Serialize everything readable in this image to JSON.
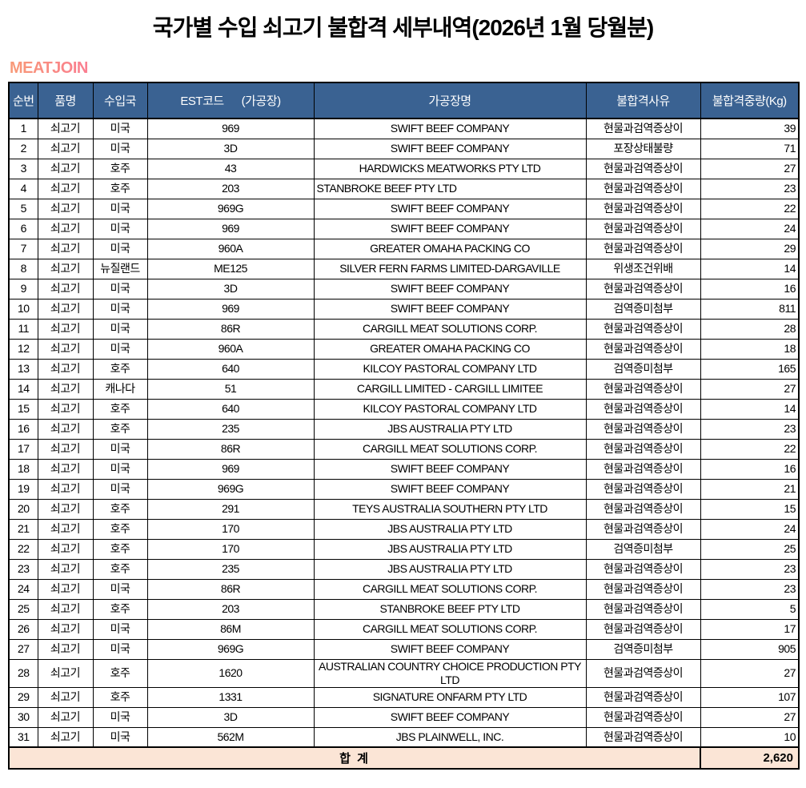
{
  "title": "국가별 수입 쇠고기 불합격 세부내역(2026년 1월 당월분)",
  "logo": "MEATJOIN",
  "colors": {
    "header_bg": "#3A6292",
    "header_text": "#FFFFFF",
    "total_row_bg": "#FBE5D6",
    "logo_gradient_start": "#F89A77",
    "logo_gradient_end": "#FA7D90",
    "border": "#000000"
  },
  "table": {
    "columns": [
      {
        "key": "no",
        "label": "순번"
      },
      {
        "key": "product",
        "label": "품명"
      },
      {
        "key": "country",
        "label": "수입국"
      },
      {
        "key": "est",
        "label": "EST코드      (가공장)"
      },
      {
        "key": "plant",
        "label": "가공장명"
      },
      {
        "key": "reason",
        "label": "불합격사유"
      },
      {
        "key": "weight",
        "label": "불합격중량(Kg)"
      }
    ],
    "rows": [
      {
        "no": "1",
        "product": "쇠고기",
        "country": "미국",
        "est": "969",
        "plant": "SWIFT BEEF COMPANY",
        "reason": "현물과검역증상이",
        "weight": "39"
      },
      {
        "no": "2",
        "product": "쇠고기",
        "country": "미국",
        "est": "3D",
        "plant": "SWIFT BEEF COMPANY",
        "reason": "포장상태불량",
        "weight": "71"
      },
      {
        "no": "3",
        "product": "쇠고기",
        "country": "호주",
        "est": "43",
        "plant": "HARDWICKS MEATWORKS PTY LTD",
        "reason": "현물과검역증상이",
        "weight": "27"
      },
      {
        "no": "4",
        "product": "쇠고기",
        "country": "호주",
        "est": "203",
        "plant": "STANBROKE BEEF PTY LTD",
        "reason": "현물과검역증상이",
        "weight": "23",
        "plant_align": "left"
      },
      {
        "no": "5",
        "product": "쇠고기",
        "country": "미국",
        "est": "969G",
        "plant": "SWIFT BEEF COMPANY",
        "reason": "현물과검역증상이",
        "weight": "22"
      },
      {
        "no": "6",
        "product": "쇠고기",
        "country": "미국",
        "est": "969",
        "plant": "SWIFT BEEF COMPANY",
        "reason": "현물과검역증상이",
        "weight": "24"
      },
      {
        "no": "7",
        "product": "쇠고기",
        "country": "미국",
        "est": "960A",
        "plant": "GREATER OMAHA PACKING CO",
        "reason": "현물과검역증상이",
        "weight": "29"
      },
      {
        "no": "8",
        "product": "쇠고기",
        "country": "뉴질랜드",
        "est": "ME125",
        "plant": "SILVER FERN FARMS LIMITED-DARGAVILLE",
        "reason": "위생조건위배",
        "weight": "14"
      },
      {
        "no": "9",
        "product": "쇠고기",
        "country": "미국",
        "est": "3D",
        "plant": "SWIFT BEEF COMPANY",
        "reason": "현물과검역증상이",
        "weight": "16"
      },
      {
        "no": "10",
        "product": "쇠고기",
        "country": "미국",
        "est": "969",
        "plant": "SWIFT BEEF COMPANY",
        "reason": "검역증미첨부",
        "weight": "811"
      },
      {
        "no": "11",
        "product": "쇠고기",
        "country": "미국",
        "est": "86R",
        "plant": "CARGILL MEAT SOLUTIONS CORP.",
        "reason": "현물과검역증상이",
        "weight": "28"
      },
      {
        "no": "12",
        "product": "쇠고기",
        "country": "미국",
        "est": "960A",
        "plant": "GREATER OMAHA PACKING CO",
        "reason": "현물과검역증상이",
        "weight": "18"
      },
      {
        "no": "13",
        "product": "쇠고기",
        "country": "호주",
        "est": "640",
        "plant": "KILCOY PASTORAL COMPANY LTD",
        "reason": "검역증미첨부",
        "weight": "165"
      },
      {
        "no": "14",
        "product": "쇠고기",
        "country": "캐나다",
        "est": "51",
        "plant": "CARGILL LIMITED - CARGILL LIMITEE",
        "reason": "현물과검역증상이",
        "weight": "27"
      },
      {
        "no": "15",
        "product": "쇠고기",
        "country": "호주",
        "est": "640",
        "plant": "KILCOY PASTORAL COMPANY LTD",
        "reason": "현물과검역증상이",
        "weight": "14"
      },
      {
        "no": "16",
        "product": "쇠고기",
        "country": "호주",
        "est": "235",
        "plant": "JBS AUSTRALIA PTY LTD",
        "reason": "현물과검역증상이",
        "weight": "23"
      },
      {
        "no": "17",
        "product": "쇠고기",
        "country": "미국",
        "est": "86R",
        "plant": "CARGILL MEAT SOLUTIONS CORP.",
        "reason": "현물과검역증상이",
        "weight": "22"
      },
      {
        "no": "18",
        "product": "쇠고기",
        "country": "미국",
        "est": "969",
        "plant": "SWIFT BEEF COMPANY",
        "reason": "현물과검역증상이",
        "weight": "16"
      },
      {
        "no": "19",
        "product": "쇠고기",
        "country": "미국",
        "est": "969G",
        "plant": "SWIFT BEEF COMPANY",
        "reason": "현물과검역증상이",
        "weight": "21"
      },
      {
        "no": "20",
        "product": "쇠고기",
        "country": "호주",
        "est": "291",
        "plant": "TEYS AUSTRALIA SOUTHERN PTY LTD",
        "reason": "현물과검역증상이",
        "weight": "15"
      },
      {
        "no": "21",
        "product": "쇠고기",
        "country": "호주",
        "est": "170",
        "plant": "JBS AUSTRALIA PTY LTD",
        "reason": "현물과검역증상이",
        "weight": "24"
      },
      {
        "no": "22",
        "product": "쇠고기",
        "country": "호주",
        "est": "170",
        "plant": "JBS AUSTRALIA PTY LTD",
        "reason": "검역증미첨부",
        "weight": "25"
      },
      {
        "no": "23",
        "product": "쇠고기",
        "country": "호주",
        "est": "235",
        "plant": "JBS AUSTRALIA PTY LTD",
        "reason": "현물과검역증상이",
        "weight": "23"
      },
      {
        "no": "24",
        "product": "쇠고기",
        "country": "미국",
        "est": "86R",
        "plant": "CARGILL MEAT SOLUTIONS CORP.",
        "reason": "현물과검역증상이",
        "weight": "23"
      },
      {
        "no": "25",
        "product": "쇠고기",
        "country": "호주",
        "est": "203",
        "plant": "STANBROKE BEEF PTY LTD",
        "reason": "현물과검역증상이",
        "weight": "5"
      },
      {
        "no": "26",
        "product": "쇠고기",
        "country": "미국",
        "est": "86M",
        "plant": "CARGILL MEAT SOLUTIONS CORP.",
        "reason": "현물과검역증상이",
        "weight": "17"
      },
      {
        "no": "27",
        "product": "쇠고기",
        "country": "미국",
        "est": "969G",
        "plant": "SWIFT BEEF COMPANY",
        "reason": "검역증미첨부",
        "weight": "905"
      },
      {
        "no": "28",
        "product": "쇠고기",
        "country": "호주",
        "est": "1620",
        "plant": "AUSTRALIAN COUNTRY CHOICE PRODUCTION PTY LTD",
        "reason": "현물과검역증상이",
        "weight": "27"
      },
      {
        "no": "29",
        "product": "쇠고기",
        "country": "호주",
        "est": "1331",
        "plant": "SIGNATURE ONFARM PTY LTD",
        "reason": "현물과검역증상이",
        "weight": "107"
      },
      {
        "no": "30",
        "product": "쇠고기",
        "country": "미국",
        "est": "3D",
        "plant": "SWIFT BEEF COMPANY",
        "reason": "현물과검역증상이",
        "weight": "27"
      },
      {
        "no": "31",
        "product": "쇠고기",
        "country": "미국",
        "est": "562M",
        "plant": "JBS PLAINWELL, INC.",
        "reason": "현물과검역증상이",
        "weight": "10"
      }
    ],
    "total_label": "합 계",
    "total_value": "2,620"
  }
}
